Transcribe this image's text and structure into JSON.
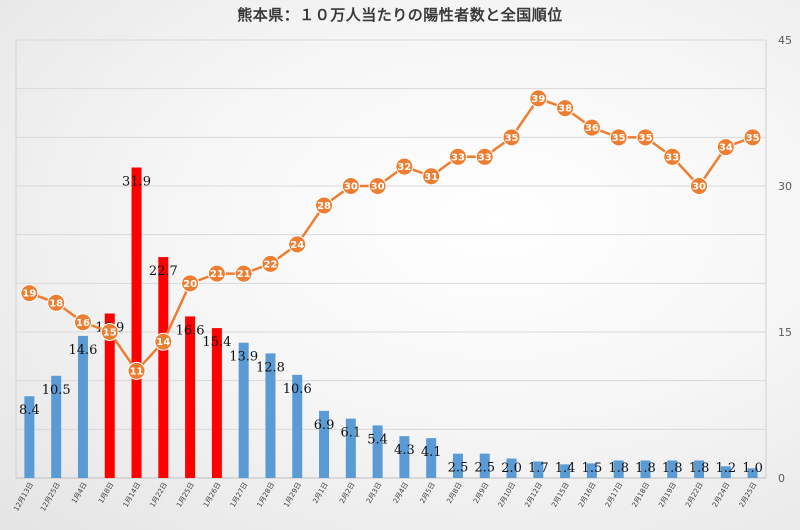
{
  "chart_data": {
    "type": "bar",
    "title": "熊本県：１０万人当たりの陽性者数と全国順位",
    "categories": [
      "12月13日",
      "12月25日",
      "1月4日",
      "1月8日",
      "1月14日",
      "1月22日",
      "1月25日",
      "1月26日",
      "1月27日",
      "1月28日",
      "1月29日",
      "2月1日",
      "2月2日",
      "2月3日",
      "2月4日",
      "2月5日",
      "2月8日",
      "2月9日",
      "2月10日",
      "2月12日",
      "2月15日",
      "2月16日",
      "2月17日",
      "2月18日",
      "2月19日",
      "2月22日",
      "2月24日",
      "2月25日"
    ],
    "series": [
      {
        "kind": "bar",
        "axis": "left",
        "values": [
          8.4,
          10.5,
          14.6,
          16.9,
          31.9,
          22.7,
          16.6,
          15.4,
          13.9,
          12.8,
          10.6,
          6.9,
          6.1,
          5.4,
          4.3,
          4.1,
          2.5,
          2.5,
          2.0,
          1.7,
          1.4,
          1.5,
          1.8,
          1.8,
          1.8,
          1.8,
          1.2,
          1.0
        ],
        "highlight_indices": [
          3,
          4,
          5,
          6,
          7
        ],
        "color": "#5b9bd5",
        "highlight_color": "#ff0000"
      },
      {
        "kind": "line",
        "axis": "right",
        "values": [
          19,
          18,
          16,
          15,
          11,
          14,
          20,
          21,
          21,
          22,
          24,
          28,
          30,
          30,
          32,
          31,
          33,
          33,
          35,
          39,
          38,
          36,
          35,
          35,
          33,
          30,
          34,
          35
        ],
        "color": "#ed7d31"
      }
    ],
    "bar_label_strings": [
      "8.4",
      "10.5",
      "14.6",
      "16.9",
      "31.9",
      "22.7",
      "16.6",
      "15.4",
      "13.9",
      "12.8",
      "10.6",
      "6.9",
      "6.1",
      "5.4",
      "4.3",
      "4.1",
      "2.5",
      "2.5",
      "2.0",
      "1.7",
      "1.4",
      "1.5",
      "1.8",
      "1.8",
      "1.8",
      "1.8",
      "1.2",
      "1.0"
    ],
    "y_left": {
      "range": [
        0,
        45
      ],
      "ticks": []
    },
    "y_right": {
      "range": [
        0,
        45
      ],
      "ticks": [
        "0",
        "15",
        "30",
        "45"
      ]
    },
    "grid": true,
    "xlabel": "",
    "ylabel": ""
  }
}
